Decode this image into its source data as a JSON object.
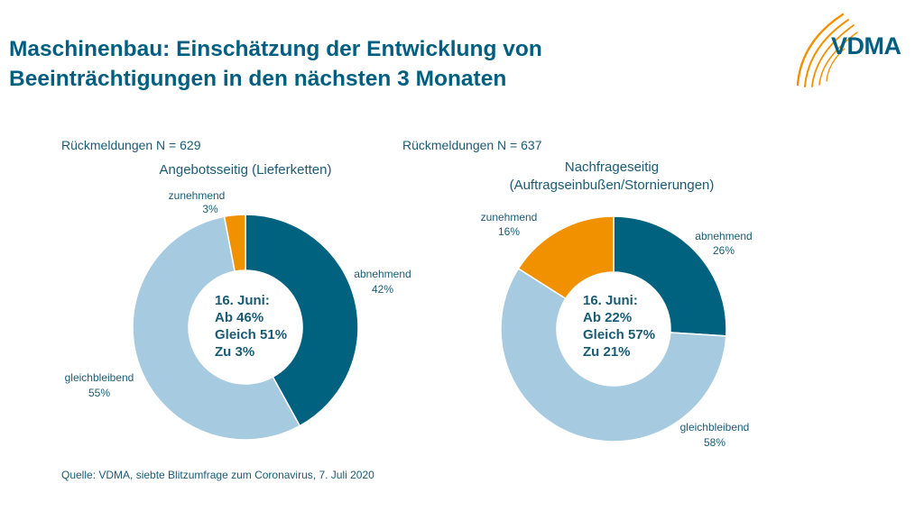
{
  "header": {
    "title_line1": "Maschinenbau: Einschätzung der Entwicklung von",
    "title_line2": "Beeinträchtigungen in den nächsten 3 Monaten",
    "logo_text": "VDMA"
  },
  "source": "Quelle: VDMA, siebte Blitzumfrage zum Coronavirus, 7. Juli 2020",
  "colors": {
    "abnehmend": "#00627f",
    "gleichbleibend": "#a6cae0",
    "zunehmend": "#f29100",
    "title": "#005f80",
    "text": "#1a5b74"
  },
  "chart_data": [
    {
      "type": "pie",
      "donut": true,
      "responses": "Rückmeldungen N = 629",
      "title": [
        "Angebotsseitig  (Lieferketten)"
      ],
      "center_label": [
        "16. Juni:",
        "Ab 46%",
        "Gleich 51%",
        "Zu 3%"
      ],
      "slices": [
        {
          "label": "abnehmend",
          "value": 42,
          "value_label": "42%",
          "color": "#00627f"
        },
        {
          "label": "gleichbleibend",
          "value": 55,
          "value_label": "55%",
          "color": "#a6cae0"
        },
        {
          "label": "zunehmend",
          "value": 3,
          "value_label": "3%",
          "color": "#f29100"
        }
      ]
    },
    {
      "type": "pie",
      "donut": true,
      "responses": "Rückmeldungen N = 637",
      "title": [
        "Nachfrageseitig",
        "(Auftragseinbußen/Stornierungen)"
      ],
      "center_label": [
        "16. Juni:",
        "Ab 22%",
        "Gleich 57%",
        "Zu 21%"
      ],
      "slices": [
        {
          "label": "abnehmend",
          "value": 26,
          "value_label": "26%",
          "color": "#00627f"
        },
        {
          "label": "gleichbleibend",
          "value": 58,
          "value_label": "58%",
          "color": "#a6cae0"
        },
        {
          "label": "zunehmend",
          "value": 16,
          "value_label": "16%",
          "color": "#f29100"
        }
      ]
    }
  ]
}
